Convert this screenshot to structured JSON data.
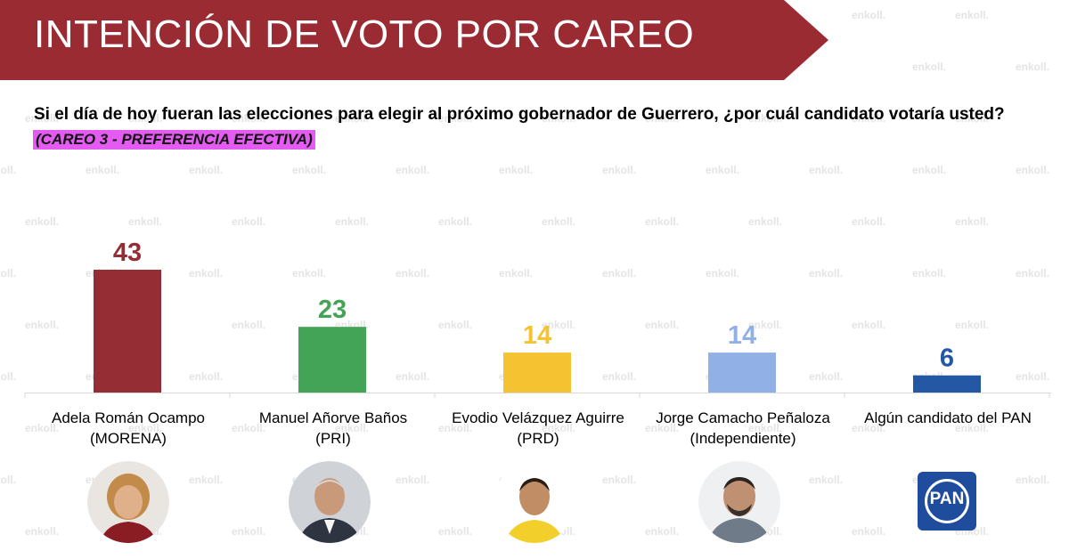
{
  "header": {
    "title": "INTENCIÓN DE VOTO POR CAREO"
  },
  "question": "Si el día de hoy fueran las elecciones para elegir al próximo gobernador de Guerrero, ¿por cuál candidato votaría usted?",
  "subtitle": "(CAREO 3 - PREFERENCIA EFECTIVA)",
  "watermark": "enkoll.",
  "chart_data": {
    "type": "bar",
    "categories": [
      "Adela Román Ocampo (MORENA)",
      "Manuel Añorve Baños (PRI)",
      "Evodio Velázquez Aguirre (PRD)",
      "Jorge Camacho Peñaloza (Independiente)",
      "Algún candidato del PAN"
    ],
    "values": [
      43,
      23,
      14,
      14,
      6
    ],
    "colors": [
      "#952d35",
      "#43a457",
      "#f5c331",
      "#91b1e6",
      "#2458a4"
    ],
    "ylim": [
      0,
      43
    ],
    "grid": false,
    "legend": "none"
  },
  "labels": [
    {
      "line1": "Adela Román Ocampo",
      "line2": "(MORENA)"
    },
    {
      "line1": "Manuel Añorve Baños",
      "line2": "(PRI)"
    },
    {
      "line1": "Evodio Velázquez Aguirre",
      "line2": "(PRD)"
    },
    {
      "line1": "Jorge Camacho Peñaloza",
      "line2": "(Independiente)"
    },
    {
      "line1": "Algún candidato del PAN",
      "line2": ""
    }
  ],
  "pan_logo_text": "PAN"
}
